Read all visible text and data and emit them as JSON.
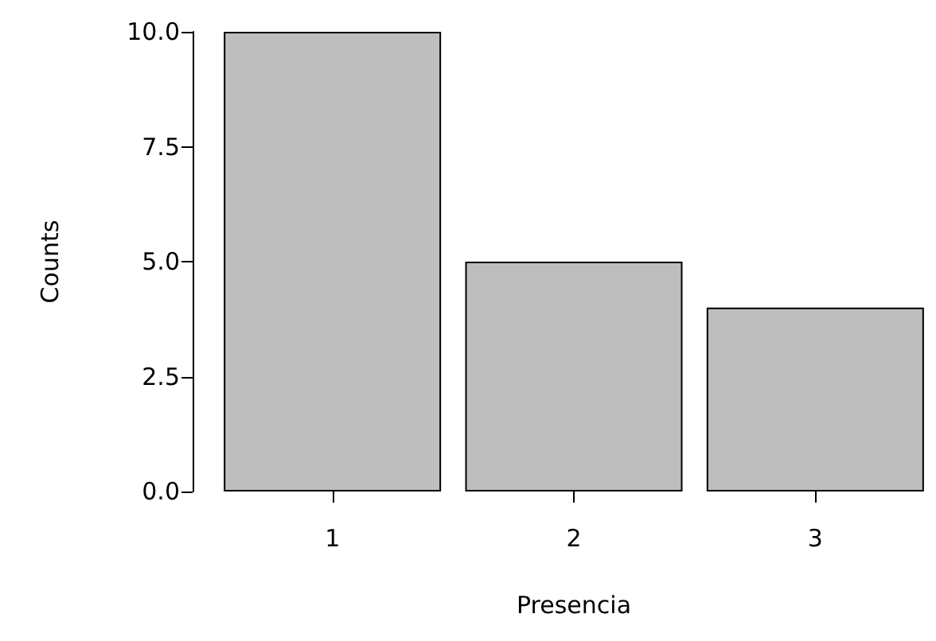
{
  "chart_data": {
    "type": "bar",
    "xlabel": "Presencia",
    "ylabel": "Counts",
    "categories": [
      "1",
      "2",
      "3"
    ],
    "values": [
      10,
      5,
      4
    ],
    "color": "#bebebe",
    "ylim": [
      0,
      10
    ],
    "yticks": [
      {
        "value": 0,
        "label": "0.0"
      },
      {
        "value": 2.5,
        "label": "2.5"
      },
      {
        "value": 5,
        "label": "5.0"
      },
      {
        "value": 7.5,
        "label": "7.5"
      },
      {
        "value": 10,
        "label": "10.0"
      }
    ],
    "grid": false
  }
}
